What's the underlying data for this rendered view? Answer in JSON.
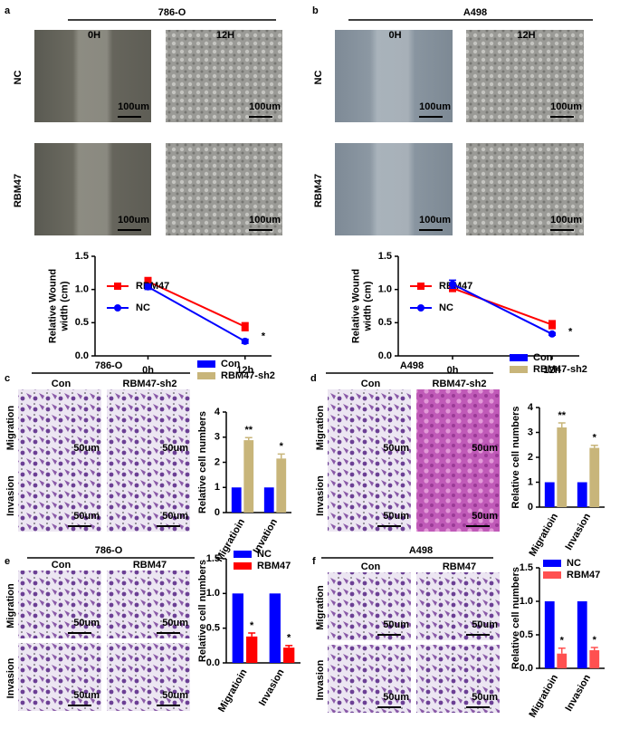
{
  "figure": {
    "panels": [
      {
        "letter": "a",
        "cell_line": "786-O",
        "column_labels": [
          "0H",
          "12H"
        ],
        "row_labels": [
          "NC",
          "RBM47"
        ],
        "scale_bar": "100um"
      },
      {
        "letter": "b",
        "cell_line": "A498",
        "column_labels": [
          "0H",
          "12H"
        ],
        "row_labels": [
          "NC",
          "RBM47"
        ],
        "scale_bar": "100um"
      },
      {
        "letter": "c",
        "cell_line": "786-O",
        "column_labels": [
          "Con",
          "RBM47-sh2"
        ],
        "row_labels": [
          "Migration",
          "Invasion"
        ],
        "scale_bar": "50um"
      },
      {
        "letter": "d",
        "cell_line": "A498",
        "column_labels": [
          "Con",
          "RBM47-sh2"
        ],
        "row_labels": [
          "Migration",
          "Invasion"
        ],
        "scale_bar": "50um"
      },
      {
        "letter": "e",
        "cell_line": "786-O",
        "column_labels": [
          "Con",
          "RBM47"
        ],
        "row_labels": [
          "Migration",
          "Invasion"
        ],
        "scale_bar": "50um"
      },
      {
        "letter": "f",
        "cell_line": "A498",
        "column_labels": [
          "Con",
          "RBM47"
        ],
        "row_labels": [
          "Migration",
          "Invasion"
        ],
        "scale_bar": "50um"
      }
    ]
  },
  "chart_data": [
    {
      "type": "line",
      "ylabel": [
        "Relative Wound",
        "width (cm)"
      ],
      "categories": [
        "0h",
        "12h"
      ],
      "series": [
        {
          "name": "RBM47",
          "color": "#ff0000",
          "values": [
            1.12,
            0.44
          ],
          "errors": [
            0.06,
            0.06
          ]
        },
        {
          "name": "NC",
          "color": "#0000ff",
          "values": [
            1.04,
            0.22
          ],
          "errors": [
            0.04,
            0.03
          ]
        }
      ],
      "ylim": [
        0,
        1.5
      ],
      "yticks": [
        {
          "value": 0,
          "label": "0.0"
        },
        {
          "value": 0.5,
          "label": "0.5"
        },
        {
          "value": 1,
          "label": "1.0"
        },
        {
          "value": 1.5,
          "label": "1.5"
        }
      ],
      "annotation": "*"
    },
    {
      "type": "line",
      "ylabel": [
        "Relative Wound",
        "width (cm)"
      ],
      "categories": [
        "0h",
        "12h"
      ],
      "series": [
        {
          "name": "RBM47",
          "color": "#ff0000",
          "values": [
            1.02,
            0.47
          ],
          "errors": [
            0.05,
            0.06
          ]
        },
        {
          "name": "NC",
          "color": "#0000ff",
          "values": [
            1.08,
            0.33
          ],
          "errors": [
            0.06,
            0.02
          ]
        }
      ],
      "ylim": [
        0,
        1.5
      ],
      "yticks": [
        {
          "value": 0,
          "label": "0.0"
        },
        {
          "value": 0.5,
          "label": "0.5"
        },
        {
          "value": 1,
          "label": "1.0"
        },
        {
          "value": 1.5,
          "label": "1.5"
        }
      ],
      "annotation": "*"
    },
    {
      "type": "bar",
      "ylabel": [
        "Relative cell numbers"
      ],
      "categories": [
        "Migratioin",
        "Invation"
      ],
      "series": [
        {
          "name": "Con",
          "color": "#0000ff",
          "values": [
            1,
            1
          ]
        },
        {
          "name": "RBM47-sh2",
          "color": "#c8b57a",
          "values": [
            2.88,
            2.15
          ],
          "errors": [
            0.1,
            0.18
          ],
          "significance": [
            "**",
            "*"
          ]
        }
      ],
      "ylim": [
        0,
        4
      ],
      "yticks": [
        0,
        1,
        2,
        3,
        4
      ]
    },
    {
      "type": "bar",
      "ylabel": [
        "Relative cell numbers"
      ],
      "categories": [
        "Migratioin",
        "Invasion"
      ],
      "series": [
        {
          "name": "Con",
          "color": "#0000ff",
          "values": [
            1,
            1
          ]
        },
        {
          "name": "RBM47-sh2",
          "color": "#c8b57a",
          "values": [
            3.2,
            2.38
          ],
          "errors": [
            0.18,
            0.1
          ],
          "significance": [
            "**",
            "*"
          ]
        }
      ],
      "ylim": [
        0,
        4
      ],
      "yticks": [
        0,
        1,
        2,
        3,
        4
      ]
    },
    {
      "type": "bar",
      "ylabel": [
        "Relative cell numbers"
      ],
      "categories": [
        "Migratioin",
        "Invasion"
      ],
      "series": [
        {
          "name": "NC",
          "color": "#0000ff",
          "values": [
            1,
            1
          ]
        },
        {
          "name": "RBM47",
          "color": "#ff0000",
          "values": [
            0.38,
            0.22
          ],
          "errors": [
            0.05,
            0.03
          ],
          "significance": [
            "*",
            "*"
          ]
        }
      ],
      "ylim": [
        0,
        1.5
      ],
      "yticks": [
        {
          "value": 0,
          "label": "0.0"
        },
        {
          "value": 0.5,
          "label": "0.5"
        },
        {
          "value": 1,
          "label": "1.0"
        },
        {
          "value": 1.5,
          "label": "1.5"
        }
      ]
    },
    {
      "type": "bar",
      "ylabel": [
        "Relative cell numbers"
      ],
      "categories": [
        "Migratioin",
        "Invasion"
      ],
      "series": [
        {
          "name": "NC",
          "color": "#0000ff",
          "values": [
            1,
            1
          ]
        },
        {
          "name": "RBM47",
          "color": "#ff5050",
          "values": [
            0.22,
            0.27
          ],
          "errors": [
            0.08,
            0.04
          ],
          "significance": [
            "*",
            "*"
          ]
        }
      ],
      "ylim": [
        0,
        1.5
      ],
      "yticks": [
        {
          "value": 0,
          "label": "0.0"
        },
        {
          "value": 0.5,
          "label": "0.5"
        },
        {
          "value": 1,
          "label": "1.0"
        },
        {
          "value": 1.5,
          "label": "1.5"
        }
      ]
    }
  ]
}
